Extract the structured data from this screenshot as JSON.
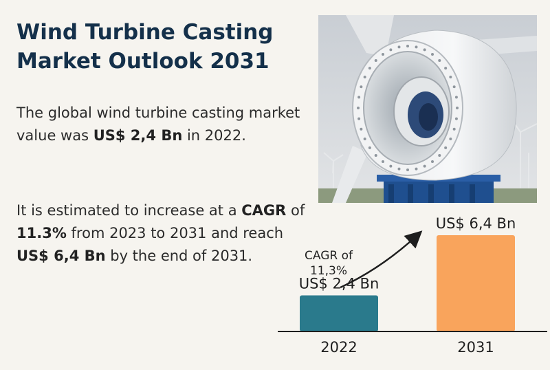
{
  "title": "Wind Turbine Casting Market Outlook 2031",
  "paragraph1": {
    "text_a": "The global wind turbine casting market value was ",
    "bold_a": "US$ 2,4 Bn",
    "text_b": " in 2022."
  },
  "paragraph2": {
    "text_a": "It is estimated to increase at a ",
    "bold_a": "CAGR",
    "text_b": " of ",
    "bold_b": "11.3%",
    "text_c": " from 2023 to 2031 and reach ",
    "bold_c": "US$ 6,4 Bn",
    "text_d": " by the end of 2031."
  },
  "colors": {
    "title": "#14304a",
    "bar_2022": "#2a7a8c",
    "bar_2031": "#f9a45c",
    "background": "#f6f4ef"
  },
  "photo": {
    "subject": "wind-turbine-nacelle-casting"
  },
  "chart_data": {
    "type": "bar",
    "categories": [
      "2022",
      "2031"
    ],
    "values": [
      2.4,
      6.4
    ],
    "value_labels": [
      "US$ 2,4 Bn",
      "US$ 6,4 Bn"
    ],
    "bar_colors": [
      "#2a7a8c",
      "#f9a45c"
    ],
    "annotation": [
      "CAGR of",
      "11,3%"
    ],
    "ylim": [
      0,
      6.4
    ],
    "grid": false
  }
}
